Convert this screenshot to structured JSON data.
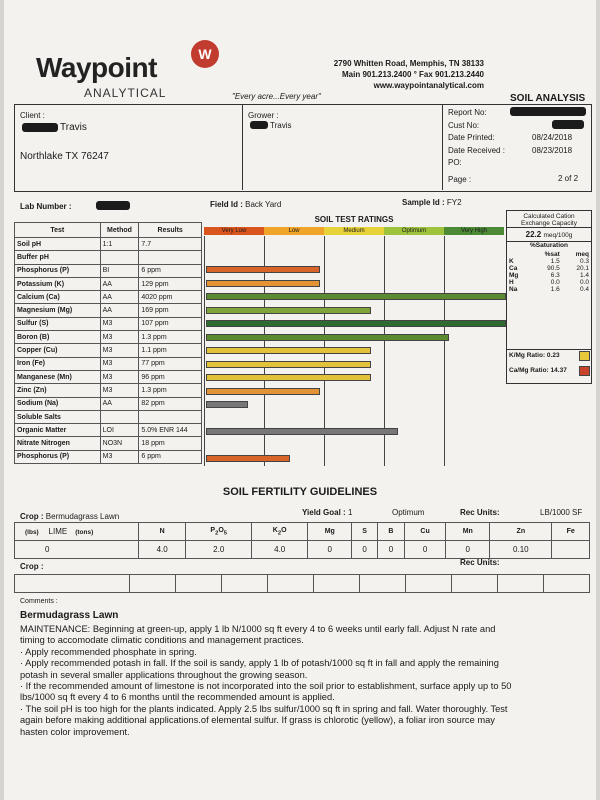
{
  "header": {
    "logo": "Waypoint",
    "logo_badge": "W",
    "logo_sub": "ANALYTICAL",
    "tagline": "\"Every acre...Every year\"",
    "address1": "2790 Whitten Road, Memphis, TN 38133",
    "address2": "Main 901.213.2400 ° Fax 901.213.2440",
    "website": "www.waypointanalytical.com",
    "report_title": "SOIL ANALYSIS"
  },
  "info": {
    "client_label": "Client :",
    "client_name": "Travis",
    "client_city": "Northlake TX  76247",
    "grower_label": "Grower :",
    "grower_name": "Travis",
    "report_no_label": "Report No:",
    "cust_no_label": "Cust No:",
    "date_printed_label": "Date Printed:",
    "date_printed": "08/24/2018",
    "date_received_label": "Date Received :",
    "date_received": "08/23/2018",
    "po_label": "PO:",
    "page_label": "Page :",
    "page_value": "2 of 2"
  },
  "sample": {
    "lab_number_label": "Lab Number :",
    "field_id_label": "Field Id :",
    "field_id": "Back Yard",
    "sample_id_label": "Sample Id :",
    "sample_id": "FY2"
  },
  "tests": {
    "headers": [
      "Test",
      "Method",
      "Results"
    ],
    "ratings_title": "SOIL TEST RATINGS",
    "bands": [
      "Very Low",
      "Low",
      "Medium",
      "Optimum",
      "Very High"
    ],
    "rows": [
      {
        "test": "Soil pH",
        "method": "1:1",
        "result": "7.7"
      },
      {
        "test": "Buffer pH",
        "method": "",
        "result": ""
      },
      {
        "test": "Phosphorus (P)",
        "method": "BI",
        "result": "6 ppm"
      },
      {
        "test": "Potassium (K)",
        "method": "AA",
        "result": "129 ppm"
      },
      {
        "test": "Calcium (Ca)",
        "method": "AA",
        "result": "4020 ppm"
      },
      {
        "test": "Magnesium (Mg)",
        "method": "AA",
        "result": "169 ppm"
      },
      {
        "test": "Sulfur (S)",
        "method": "M3",
        "result": "107 ppm"
      },
      {
        "test": "Boron (B)",
        "method": "M3",
        "result": "1.3 ppm"
      },
      {
        "test": "Copper (Cu)",
        "method": "M3",
        "result": "1.1 ppm"
      },
      {
        "test": "Iron (Fe)",
        "method": "M3",
        "result": "77 ppm"
      },
      {
        "test": "Manganese (Mn)",
        "method": "M3",
        "result": "96 ppm"
      },
      {
        "test": "Zinc (Zn)",
        "method": "M3",
        "result": "1.3 ppm"
      },
      {
        "test": "Sodium (Na)",
        "method": "AA",
        "result": "82 ppm"
      },
      {
        "test": "Soluble Salts",
        "method": "",
        "result": ""
      },
      {
        "test": "Organic Matter",
        "method": "LOI",
        "result": "5.0%  ENR 144"
      },
      {
        "test": "Nitrate Nitrogen",
        "method": "NO3N",
        "result": "18 ppm"
      },
      {
        "test": "Phosphorus (P)",
        "method": "M3",
        "result": "6 ppm"
      }
    ]
  },
  "chart_data": {
    "type": "bar",
    "title": "SOIL TEST RATINGS",
    "bands": [
      "Very Low",
      "Low",
      "Medium",
      "Optimum",
      "Very High"
    ],
    "band_colors": [
      "#d9551e",
      "#f0a52a",
      "#e8d23a",
      "#9fc23d",
      "#4c8a35"
    ],
    "scale_max": 5,
    "bars": [
      {
        "row": 2,
        "value": 1.9,
        "color": "#d9642a"
      },
      {
        "row": 3,
        "value": 1.9,
        "color": "#e39236"
      },
      {
        "row": 4,
        "value": 5.0,
        "color": "#5c8a33"
      },
      {
        "row": 5,
        "value": 2.75,
        "color": "#7fa53a"
      },
      {
        "row": 6,
        "value": 5.8,
        "color": "#2f6a2e"
      },
      {
        "row": 7,
        "value": 4.05,
        "color": "#5c8a33"
      },
      {
        "row": 8,
        "value": 2.75,
        "color": "#e2c23a"
      },
      {
        "row": 9,
        "value": 2.75,
        "color": "#e2c23a"
      },
      {
        "row": 10,
        "value": 2.75,
        "color": "#e2c23a"
      },
      {
        "row": 11,
        "value": 1.9,
        "color": "#e39236"
      },
      {
        "row": 12,
        "value": 0.7,
        "color": "#777777"
      },
      {
        "row": 14,
        "value": 3.2,
        "color": "#777777"
      },
      {
        "row": 16,
        "value": 1.4,
        "color": "#d9642a"
      }
    ]
  },
  "cation": {
    "title1": "Calculated Cation",
    "title2": "Exchange Capacity",
    "cec": "22.2",
    "cec_unit": "meq/100g",
    "sat_title": "%Saturation",
    "col_sat": "%sat",
    "col_meq": "meq",
    "rows": [
      {
        "el": "K",
        "sat": "1.5",
        "meq": "0.3"
      },
      {
        "el": "Ca",
        "sat": "90.5",
        "meq": "20.1"
      },
      {
        "el": "Mg",
        "sat": "6.3",
        "meq": "1.4"
      },
      {
        "el": "H",
        "sat": "0.0",
        "meq": "0.0"
      },
      {
        "el": "Na",
        "sat": "1.6",
        "meq": "0.4"
      }
    ],
    "kmg_label": "K/Mg Ratio:",
    "kmg_value": "0.23",
    "kmg_color": "#e8c93a",
    "camg_label": "Ca/Mg Ratio:",
    "camg_value": "14.37",
    "camg_color": "#c8452c"
  },
  "fertility": {
    "title": "SOIL FERTILITY GUIDELINES",
    "crop_label": "Crop :",
    "crop": "Bermudagrass Lawn",
    "yield_label": "Yield Goal :",
    "yield": "1",
    "yield_level": "Optimum",
    "rec_units_label": "Rec Units:",
    "rec_units": "LB/1000 SF",
    "lime_lbs": "(lbs)",
    "lime": "LIME",
    "lime_tons": "(tons)",
    "cols": [
      "N",
      "P2O5",
      "K2O",
      "Mg",
      "S",
      "B",
      "Cu",
      "Mn",
      "Zn",
      "Fe"
    ],
    "values": [
      "0",
      "4.0",
      "2.0",
      "4.0",
      "0",
      "0",
      "0",
      "0",
      "0",
      "0.10",
      ""
    ],
    "crop2_label": "Crop :",
    "rec_units2_label": "Rec Units:"
  },
  "comments": {
    "label": "Comments :",
    "heading": "Bermudagrass Lawn",
    "lines": [
      " MAINTENANCE: Beginning at green-up, apply 1 lb N/1000 sq ft every 4 to 6  weeks until early fall.  Adjust N rate and",
      "timing to accomodate climatic conditions and management practices.",
      "  · Apply recommended phosphate in spring.",
      "  · Apply recommended potash in fall. If the soil is sandy, apply 1 lb of potash/1000 sq ft in fall and apply the remaining",
      "potash in several smaller applications throughout the growing season.",
      "  · If the recommended amount of limestone is not incorporated into the soil prior to establishment, surface apply up to 50",
      "lbs/1000 sq ft every 4 to 6 months until the recommended amount is applied.",
      "  · The soil pH is too high for the plants indicated. Apply 2.5 lbs sulfur/1000 sq ft in spring and fall.  Water thoroughly.  Test",
      "again before making additional applications.of elemental sulfur.  If grass is chlorotic (yellow), a foliar iron source may",
      "hasten color improvement."
    ]
  }
}
